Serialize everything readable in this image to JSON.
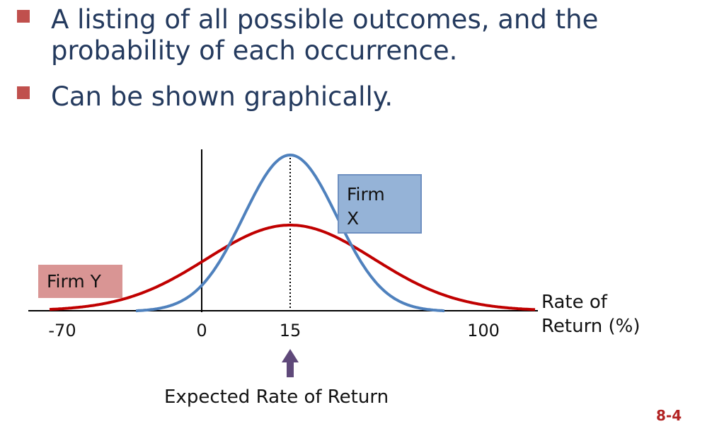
{
  "bullets": [
    "A listing of all possible outcomes, and the probability of each occurrence.",
    "Can be shown graphically."
  ],
  "bullet_lines": [
    [
      "A listing of all possible outcomes, and the",
      "probability of each occurrence."
    ],
    [
      "Can be shown graphically."
    ]
  ],
  "chart_data": {
    "type": "line",
    "x_ticks": [
      "-70",
      "0",
      "15",
      "100"
    ],
    "xlabel_line1": "Rate of",
    "xlabel_line2": "Return (%)",
    "series": [
      {
        "name": "Firm X",
        "mean": 15,
        "spread": "narrow",
        "color": "#4f81bd"
      },
      {
        "name": "Firm Y",
        "mean": 15,
        "spread": "wide",
        "color": "#c00000"
      }
    ],
    "firm_x_label": "Firm X",
    "firm_y_label": "Firm Y",
    "expected_label": "Expected Rate of Return",
    "colors": {
      "firm_x_box": "#95b3d7",
      "firm_y_box": "#d99594",
      "arrow": "#5f497a"
    }
  },
  "slide_number": "8-4"
}
